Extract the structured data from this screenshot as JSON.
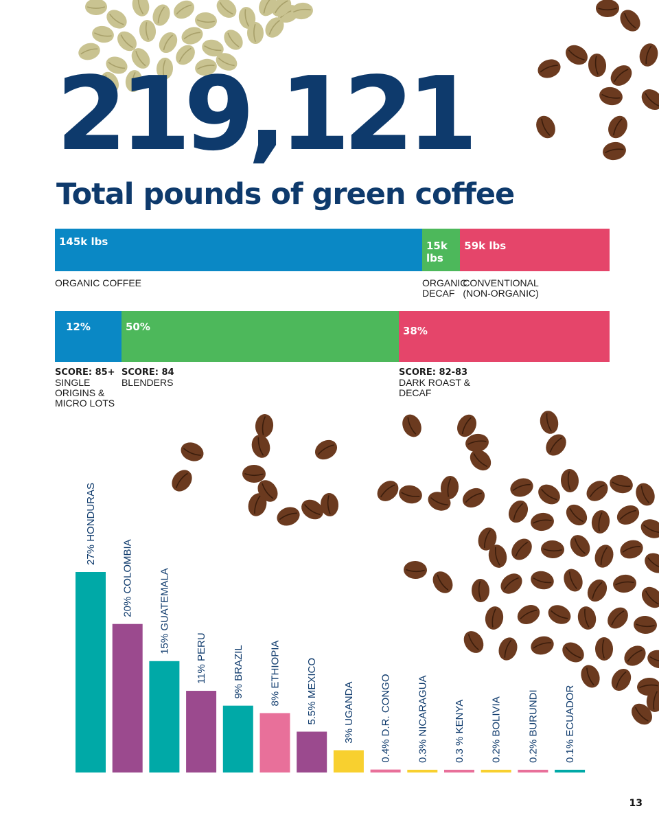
{
  "headline": {
    "total": "219,121",
    "subtitle": "Total pounds of green coffee"
  },
  "colors": {
    "navy": "#0e3a6c",
    "blue": "#0a88c5",
    "green": "#4db85b",
    "red": "#e5456a",
    "teal": "#00a9a7",
    "purple": "#9b4a8e",
    "pink": "#e8709a",
    "yellow": "#f8d02f",
    "bean": "#6b3a1f",
    "green_bean": "#c9c391"
  },
  "volume_bar": {
    "segments": [
      {
        "value_label": "145k lbs",
        "value": 145,
        "color": "#0a88c5",
        "caption": [
          "ORGANIC COFFEE"
        ]
      },
      {
        "value_label": "15k lbs",
        "value": 15,
        "color": "#4db85b",
        "caption": [
          "ORGANIC",
          "DECAF"
        ]
      },
      {
        "value_label": "59k lbs",
        "value": 59,
        "color": "#e5456a",
        "caption": [
          "CONVENTIONAL",
          "(NON-ORGANIC)"
        ]
      }
    ]
  },
  "score_bar": {
    "segments": [
      {
        "value_label": "12%",
        "value": 12,
        "color": "#0a88c5",
        "score": "SCORE: 85+",
        "caption": [
          "SINGLE",
          "ORIGINS &",
          "MICRO LOTS"
        ]
      },
      {
        "value_label": "50%",
        "value": 50,
        "color": "#4db85b",
        "score": "SCORE: 84",
        "caption": [
          "BLENDERS"
        ]
      },
      {
        "value_label": "38%",
        "value": 38,
        "color": "#e5456a",
        "score": "SCORE: 82-83",
        "caption": [
          "DARK ROAST &",
          "DECAF"
        ]
      }
    ]
  },
  "chart_data": {
    "type": "bar",
    "categories": [
      "HONDURAS",
      "COLOMBIA",
      "GUATEMALA",
      "PERU",
      "BRAZIL",
      "ETHIOPIA",
      "MEXICO",
      "UGANDA",
      "D.R. CONGO",
      "NICARAGUA",
      "KENYA",
      "BOLIVIA",
      "BURUNDI",
      "ECUADOR"
    ],
    "values": [
      27,
      20,
      15,
      11,
      9,
      8,
      5.5,
      3,
      0.4,
      0.3,
      0.3,
      0.2,
      0.2,
      0.1
    ],
    "labels": [
      "27% HONDURAS",
      "20% COLOMBIA",
      "15% GUATEMALA",
      "11% PERU",
      "9% BRAZIL",
      "8% ETHIOPIA",
      "5.5% MEXICO",
      "3% UGANDA",
      "0.4% D.R. CONGO",
      "0.3% NICARAGUA",
      "0.3 % KENYA",
      "0.2% BOLIVIA",
      "0.2% BURUNDI",
      "0.1% ECUADOR"
    ],
    "bar_colors": [
      "#00a9a7",
      "#9b4a8e",
      "#00a9a7",
      "#9b4a8e",
      "#00a9a7",
      "#e8709a",
      "#9b4a8e",
      "#f8d02f",
      "#e8709a",
      "#f8d02f",
      "#e8709a",
      "#f8d02f",
      "#e8709a",
      "#00a9a7"
    ],
    "title": "",
    "xlabel": "",
    "ylabel": "",
    "grid": false,
    "legend": "none"
  },
  "page_number": "13"
}
